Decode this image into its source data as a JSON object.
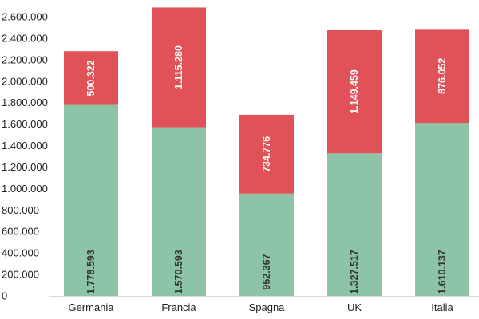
{
  "chart_data": {
    "type": "bar",
    "stacked": true,
    "title": "",
    "xlabel": "",
    "ylabel": "",
    "categories": [
      "Germania",
      "Francia",
      "Spagna",
      "UK",
      "Italia"
    ],
    "series": [
      {
        "values": [
          1778593,
          1570593,
          952367,
          1327517,
          1610137
        ],
        "labels": [
          "1.778.593",
          "1.570.593",
          "952.367",
          "1.327.517",
          "1.610.137"
        ],
        "color": "#8dc4a8",
        "label_color": "#333333"
      },
      {
        "values": [
          500322,
          1115280,
          734776,
          1149459,
          876052
        ],
        "labels": [
          "500.322",
          "1.115.280",
          "734.776",
          "1.149.459",
          "876.052"
        ],
        "color": "#e05257",
        "label_color": "#ffffff"
      }
    ],
    "y_ticks": [
      0,
      200000,
      400000,
      600000,
      800000,
      1000000,
      1200000,
      1400000,
      1600000,
      1800000,
      2000000,
      2200000,
      2400000,
      2600000
    ],
    "y_tick_labels": [
      "0",
      "200.000",
      "400.000",
      "600.000",
      "800.000",
      "1.000.000",
      "1.200.000",
      "1.400.000",
      "1.600.000",
      "1.800.000",
      "2.000.000",
      "2.200.000",
      "2.400.000",
      "2.600.000"
    ],
    "ylim": [
      0,
      2600000
    ],
    "grid": false,
    "legend": "none"
  }
}
